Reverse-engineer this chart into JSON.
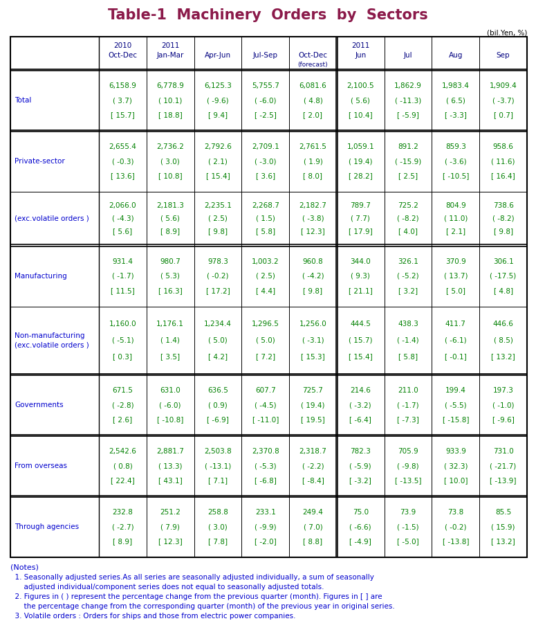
{
  "title": "Table-1  Machinery  Orders  by  Sectors",
  "title_color": "#8B1A4A",
  "unit_label": "(bil.Yen, %)",
  "header_color": "#000080",
  "data_color": "#008000",
  "label_color": "#0000CD",
  "notes_color": "#0000CD",
  "col_headers_line1": [
    "2010",
    "2011",
    "",
    "",
    "",
    "2011",
    "",
    "",
    ""
  ],
  "col_headers_line2": [
    "Oct-Dec",
    "Jan-Mar",
    "Apr-Jun",
    "Jul-Sep",
    "Oct-Dec",
    "Jun",
    "Jul",
    "Aug",
    "Sep"
  ],
  "col_headers_line3": [
    "",
    "",
    "",
    "",
    "(forecast)",
    "",
    "",
    "",
    ""
  ],
  "row_labels": [
    "Total",
    "Private-sector",
    "(exc.volatile orders )",
    "Manufacturing",
    "Non-manufacturing\n(exc.volatile orders )",
    "Governments",
    "From overseas",
    "Through agencies"
  ],
  "data": [
    [
      "6,158.9",
      "( 3.7)",
      "[ 15.7]",
      "6,778.9",
      "( 10.1)",
      "[ 18.8]",
      "6,125.3",
      "( -9.6)",
      "[ 9.4]",
      "5,755.7",
      "( -6.0)",
      "[ -2.5]",
      "6,081.6",
      "( 4.8)",
      "[ 2.0]",
      "2,100.5",
      "( 5.6)",
      "[ 10.4]",
      "1,862.9",
      "( -11.3)",
      "[ -5.9]",
      "1,983.4",
      "( 6.5)",
      "[ -3.3]",
      "1,909.4",
      "( -3.7)",
      "[ 0.7]"
    ],
    [
      "2,655.4",
      "( -0.3)",
      "[ 13.6]",
      "2,736.2",
      "( 3.0)",
      "[ 10.8]",
      "2,792.6",
      "( 2.1)",
      "[ 15.4]",
      "2,709.1",
      "( -3.0)",
      "[ 3.6]",
      "2,761.5",
      "( 1.9)",
      "[ 8.0]",
      "1,059.1",
      "( 19.4)",
      "[ 28.2]",
      "891.2",
      "( -15.9)",
      "[ 2.5]",
      "859.3",
      "( -3.6)",
      "[ -10.5]",
      "958.6",
      "( 11.6)",
      "[ 16.4]"
    ],
    [
      "2,066.0",
      "( -4.3)",
      "[ 5.6]",
      "2,181.3",
      "( 5.6)",
      "[ 8.9]",
      "2,235.1",
      "( 2.5)",
      "[ 9.8]",
      "2,268.7",
      "( 1.5)",
      "[ 5.8]",
      "2,182.7",
      "( -3.8)",
      "[ 12.3]",
      "789.7",
      "( 7.7)",
      "[ 17.9]",
      "725.2",
      "( -8.2)",
      "[ 4.0]",
      "804.9",
      "( 11.0)",
      "[ 2.1]",
      "738.6",
      "( -8.2)",
      "[ 9.8]"
    ],
    [
      "931.4",
      "( -1.7)",
      "[ 11.5]",
      "980.7",
      "( 5.3)",
      "[ 16.3]",
      "978.3",
      "( -0.2)",
      "[ 17.2]",
      "1,003.2",
      "( 2.5)",
      "[ 4.4]",
      "960.8",
      "( -4.2)",
      "[ 9.8]",
      "344.0",
      "( 9.3)",
      "[ 21.1]",
      "326.1",
      "( -5.2)",
      "[ 3.2]",
      "370.9",
      "( 13.7)",
      "[ 5.0]",
      "306.1",
      "( -17.5)",
      "[ 4.8]"
    ],
    [
      "1,160.0",
      "( -5.1)",
      "[ 0.3]",
      "1,176.1",
      "( 1.4)",
      "[ 3.5]",
      "1,234.4",
      "( 5.0)",
      "[ 4.2]",
      "1,296.5",
      "( 5.0)",
      "[ 7.2]",
      "1,256.0",
      "( -3.1)",
      "[ 15.3]",
      "444.5",
      "( 15.7)",
      "[ 15.4]",
      "438.3",
      "( -1.4)",
      "[ 5.8]",
      "411.7",
      "( -6.1)",
      "[ -0.1]",
      "446.6",
      "( 8.5)",
      "[ 13.2]"
    ],
    [
      "671.5",
      "( -2.8)",
      "[ 2.6]",
      "631.0",
      "( -6.0)",
      "[ -10.8]",
      "636.5",
      "( 0.9)",
      "[ -6.9]",
      "607.7",
      "( -4.5)",
      "[ -11.0]",
      "725.7",
      "( 19.4)",
      "[ 19.5]",
      "214.6",
      "( -3.2)",
      "[ -6.4]",
      "211.0",
      "( -1.7)",
      "[ -7.3]",
      "199.4",
      "( -5.5)",
      "[ -15.8]",
      "197.3",
      "( -1.0)",
      "[ -9.6]"
    ],
    [
      "2,542.6",
      "( 0.8)",
      "[ 22.4]",
      "2,881.7",
      "( 13.3)",
      "[ 43.1]",
      "2,503.8",
      "( -13.1)",
      "[ 7.1]",
      "2,370.8",
      "( -5.3)",
      "[ -6.8]",
      "2,318.7",
      "( -2.2)",
      "[ -8.4]",
      "782.3",
      "( -5.9)",
      "[ -3.2]",
      "705.9",
      "( -9.8)",
      "[ -13.5]",
      "933.9",
      "( 32.3)",
      "[ 10.0]",
      "731.0",
      "( -21.7)",
      "[ -13.9]"
    ],
    [
      "232.8",
      "( -2.7)",
      "[ 8.9]",
      "251.2",
      "( 7.9)",
      "[ 12.3]",
      "258.8",
      "( 3.0)",
      "[ 7.8]",
      "233.1",
      "( -9.9)",
      "[ -2.0]",
      "249.4",
      "( 7.0)",
      "[ 8.8]",
      "75.0",
      "( -6.6)",
      "[ -4.9]",
      "73.9",
      "( -1.5)",
      "[ -5.0]",
      "73.8",
      "( -0.2)",
      "[ -13.8]",
      "85.5",
      "( 15.9)",
      "[ 13.2]"
    ]
  ],
  "notes": [
    "(Notes)",
    "  1. Seasonally adjusted series.As all series are seasonally adjusted individually, a sum of seasonally",
    "      adjusted individual/component series does not equal to seasonally adjusted totals.",
    "  2. Figures in ( ) represent the percentage change from the previous quarter (month). Figures in [ ] are",
    "      the percentage change from the corresponding quarter (month) of the previous year in original series.",
    "  3. Volatile orders : Orders for ships and those from electric power companies."
  ]
}
